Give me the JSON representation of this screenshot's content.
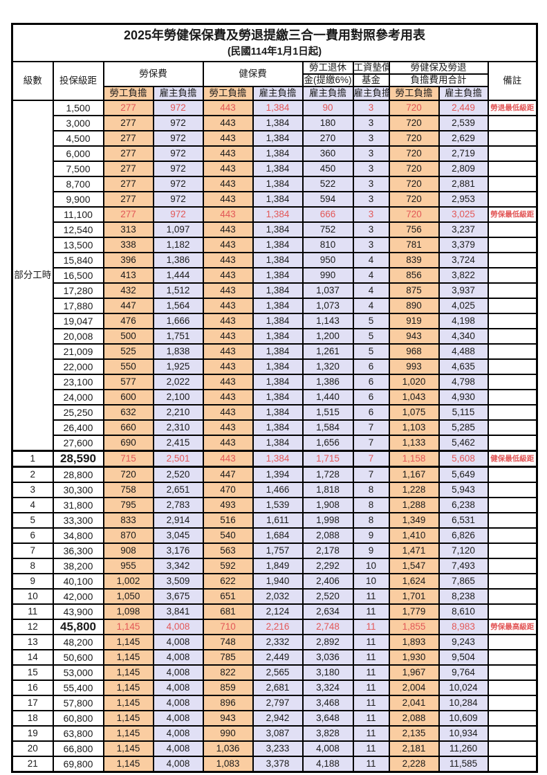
{
  "title": "2025年勞健保保費及勞退提繳三合一費用對照參考用表",
  "subtitle": "(民國114年1月1日起)",
  "colors": {
    "worker_bg": "#FACDA1",
    "employer_bg": "#E1E0F5",
    "highlight_text": "#E25757",
    "border": "#000000"
  },
  "header": {
    "level": "級數",
    "bracket": "投保級距",
    "labor_ins": "勞保費",
    "health_ins": "健保費",
    "pension_line1": "勞工退休",
    "pension_line2": "金(提繳6%)",
    "wage_fund_line1": "工資墊償",
    "wage_fund_line2": "基金",
    "total_line1": "勞健保及勞退",
    "total_line2": "負擔費用合計",
    "note": "備註",
    "worker": "勞工負擔",
    "employer": "雇主負擔"
  },
  "part_time_label": "部分工時",
  "part_time_row_count": 23,
  "rows": [
    {
      "level": "",
      "bracket": "1,500",
      "values": [
        "277",
        "972",
        "443",
        "1,384",
        "90",
        "3",
        "720",
        "2,449"
      ],
      "note": "勞退最低級距",
      "red": true,
      "big": false,
      "emph": false
    },
    {
      "level": "",
      "bracket": "3,000",
      "values": [
        "277",
        "972",
        "443",
        "1,384",
        "180",
        "3",
        "720",
        "2,539"
      ],
      "note": "",
      "red": false,
      "big": false,
      "emph": false
    },
    {
      "level": "",
      "bracket": "4,500",
      "values": [
        "277",
        "972",
        "443",
        "1,384",
        "270",
        "3",
        "720",
        "2,629"
      ],
      "note": "",
      "red": false,
      "big": false,
      "emph": false
    },
    {
      "level": "",
      "bracket": "6,000",
      "values": [
        "277",
        "972",
        "443",
        "1,384",
        "360",
        "3",
        "720",
        "2,719"
      ],
      "note": "",
      "red": false,
      "big": false,
      "emph": false
    },
    {
      "level": "",
      "bracket": "7,500",
      "values": [
        "277",
        "972",
        "443",
        "1,384",
        "450",
        "3",
        "720",
        "2,809"
      ],
      "note": "",
      "red": false,
      "big": false,
      "emph": false
    },
    {
      "level": "",
      "bracket": "8,700",
      "values": [
        "277",
        "972",
        "443",
        "1,384",
        "522",
        "3",
        "720",
        "2,881"
      ],
      "note": "",
      "red": false,
      "big": false,
      "emph": false
    },
    {
      "level": "",
      "bracket": "9,900",
      "values": [
        "277",
        "972",
        "443",
        "1,384",
        "594",
        "3",
        "720",
        "2,953"
      ],
      "note": "",
      "red": false,
      "big": false,
      "emph": false
    },
    {
      "level": "",
      "bracket": "11,100",
      "values": [
        "277",
        "972",
        "443",
        "1,384",
        "666",
        "3",
        "720",
        "3,025"
      ],
      "note": "勞保最低級距",
      "red": true,
      "big": false,
      "emph": false
    },
    {
      "level": "",
      "bracket": "12,540",
      "values": [
        "313",
        "1,097",
        "443",
        "1,384",
        "752",
        "3",
        "756",
        "3,237"
      ],
      "note": "",
      "red": false,
      "big": false,
      "emph": false
    },
    {
      "level": "",
      "bracket": "13,500",
      "values": [
        "338",
        "1,182",
        "443",
        "1,384",
        "810",
        "3",
        "781",
        "3,379"
      ],
      "note": "",
      "red": false,
      "big": false,
      "emph": false
    },
    {
      "level": "",
      "bracket": "15,840",
      "values": [
        "396",
        "1,386",
        "443",
        "1,384",
        "950",
        "4",
        "839",
        "3,724"
      ],
      "note": "",
      "red": false,
      "big": false,
      "emph": false
    },
    {
      "level": "",
      "bracket": "16,500",
      "values": [
        "413",
        "1,444",
        "443",
        "1,384",
        "990",
        "4",
        "856",
        "3,822"
      ],
      "note": "",
      "red": false,
      "big": false,
      "emph": false
    },
    {
      "level": "",
      "bracket": "17,280",
      "values": [
        "432",
        "1,512",
        "443",
        "1,384",
        "1,037",
        "4",
        "875",
        "3,937"
      ],
      "note": "",
      "red": false,
      "big": false,
      "emph": false
    },
    {
      "level": "",
      "bracket": "17,880",
      "values": [
        "447",
        "1,564",
        "443",
        "1,384",
        "1,073",
        "4",
        "890",
        "4,025"
      ],
      "note": "",
      "red": false,
      "big": false,
      "emph": false
    },
    {
      "level": "",
      "bracket": "19,047",
      "values": [
        "476",
        "1,666",
        "443",
        "1,384",
        "1,143",
        "5",
        "919",
        "4,198"
      ],
      "note": "",
      "red": false,
      "big": false,
      "emph": false
    },
    {
      "level": "",
      "bracket": "20,008",
      "values": [
        "500",
        "1,751",
        "443",
        "1,384",
        "1,200",
        "5",
        "943",
        "4,340"
      ],
      "note": "",
      "red": false,
      "big": false,
      "emph": false
    },
    {
      "level": "",
      "bracket": "21,009",
      "values": [
        "525",
        "1,838",
        "443",
        "1,384",
        "1,261",
        "5",
        "968",
        "4,488"
      ],
      "note": "",
      "red": false,
      "big": false,
      "emph": false
    },
    {
      "level": "",
      "bracket": "22,000",
      "values": [
        "550",
        "1,925",
        "443",
        "1,384",
        "1,320",
        "6",
        "993",
        "4,635"
      ],
      "note": "",
      "red": false,
      "big": false,
      "emph": false
    },
    {
      "level": "",
      "bracket": "23,100",
      "values": [
        "577",
        "2,022",
        "443",
        "1,384",
        "1,386",
        "6",
        "1,020",
        "4,798"
      ],
      "note": "",
      "red": false,
      "big": false,
      "emph": false
    },
    {
      "level": "",
      "bracket": "24,000",
      "values": [
        "600",
        "2,100",
        "443",
        "1,384",
        "1,440",
        "6",
        "1,043",
        "4,930"
      ],
      "note": "",
      "red": false,
      "big": false,
      "emph": false
    },
    {
      "level": "",
      "bracket": "25,250",
      "values": [
        "632",
        "2,210",
        "443",
        "1,384",
        "1,515",
        "6",
        "1,075",
        "5,115"
      ],
      "note": "",
      "red": false,
      "big": false,
      "emph": false
    },
    {
      "level": "",
      "bracket": "26,400",
      "values": [
        "660",
        "2,310",
        "443",
        "1,384",
        "1,584",
        "7",
        "1,103",
        "5,285"
      ],
      "note": "",
      "red": false,
      "big": false,
      "emph": false
    },
    {
      "level": "",
      "bracket": "27,600",
      "values": [
        "690",
        "2,415",
        "443",
        "1,384",
        "1,656",
        "7",
        "1,133",
        "5,462"
      ],
      "note": "",
      "red": false,
      "big": false,
      "emph": false
    },
    {
      "level": "1",
      "bracket": "28,590",
      "values": [
        "715",
        "2,501",
        "443",
        "1,384",
        "1,715",
        "7",
        "1,158",
        "5,608"
      ],
      "note": "健保最低級距",
      "red": true,
      "big": true,
      "emph": true
    },
    {
      "level": "2",
      "bracket": "28,800",
      "values": [
        "720",
        "2,520",
        "447",
        "1,394",
        "1,728",
        "7",
        "1,167",
        "5,649"
      ],
      "note": "",
      "red": false,
      "big": false,
      "emph": false
    },
    {
      "level": "3",
      "bracket": "30,300",
      "values": [
        "758",
        "2,651",
        "470",
        "1,466",
        "1,818",
        "8",
        "1,228",
        "5,943"
      ],
      "note": "",
      "red": false,
      "big": false,
      "emph": false
    },
    {
      "level": "4",
      "bracket": "31,800",
      "values": [
        "795",
        "2,783",
        "493",
        "1,539",
        "1,908",
        "8",
        "1,288",
        "6,238"
      ],
      "note": "",
      "red": false,
      "big": false,
      "emph": false
    },
    {
      "level": "5",
      "bracket": "33,300",
      "values": [
        "833",
        "2,914",
        "516",
        "1,611",
        "1,998",
        "8",
        "1,349",
        "6,531"
      ],
      "note": "",
      "red": false,
      "big": false,
      "emph": false
    },
    {
      "level": "6",
      "bracket": "34,800",
      "values": [
        "870",
        "3,045",
        "540",
        "1,684",
        "2,088",
        "9",
        "1,410",
        "6,826"
      ],
      "note": "",
      "red": false,
      "big": false,
      "emph": false
    },
    {
      "level": "7",
      "bracket": "36,300",
      "values": [
        "908",
        "3,176",
        "563",
        "1,757",
        "2,178",
        "9",
        "1,471",
        "7,120"
      ],
      "note": "",
      "red": false,
      "big": false,
      "emph": false
    },
    {
      "level": "8",
      "bracket": "38,200",
      "values": [
        "955",
        "3,342",
        "592",
        "1,849",
        "2,292",
        "10",
        "1,547",
        "7,493"
      ],
      "note": "",
      "red": false,
      "big": false,
      "emph": false
    },
    {
      "level": "9",
      "bracket": "40,100",
      "values": [
        "1,002",
        "3,509",
        "622",
        "1,940",
        "2,406",
        "10",
        "1,624",
        "7,865"
      ],
      "note": "",
      "red": false,
      "big": false,
      "emph": false
    },
    {
      "level": "10",
      "bracket": "42,000",
      "values": [
        "1,050",
        "3,675",
        "651",
        "2,032",
        "2,520",
        "11",
        "1,701",
        "8,238"
      ],
      "note": "",
      "red": false,
      "big": false,
      "emph": false
    },
    {
      "level": "11",
      "bracket": "43,900",
      "values": [
        "1,098",
        "3,841",
        "681",
        "2,124",
        "2,634",
        "11",
        "1,779",
        "8,610"
      ],
      "note": "",
      "red": false,
      "big": false,
      "emph": false
    },
    {
      "level": "12",
      "bracket": "45,800",
      "values": [
        "1,145",
        "4,008",
        "710",
        "2,216",
        "2,748",
        "11",
        "1,855",
        "8,983"
      ],
      "note": "勞保最高級距",
      "red": true,
      "big": true,
      "emph": false
    },
    {
      "level": "13",
      "bracket": "48,200",
      "values": [
        "1,145",
        "4,008",
        "748",
        "2,332",
        "2,892",
        "11",
        "1,893",
        "9,243"
      ],
      "note": "",
      "red": false,
      "big": false,
      "emph": false
    },
    {
      "level": "14",
      "bracket": "50,600",
      "values": [
        "1,145",
        "4,008",
        "785",
        "2,449",
        "3,036",
        "11",
        "1,930",
        "9,504"
      ],
      "note": "",
      "red": false,
      "big": false,
      "emph": false
    },
    {
      "level": "15",
      "bracket": "53,000",
      "values": [
        "1,145",
        "4,008",
        "822",
        "2,565",
        "3,180",
        "11",
        "1,967",
        "9,764"
      ],
      "note": "",
      "red": false,
      "big": false,
      "emph": false
    },
    {
      "level": "16",
      "bracket": "55,400",
      "values": [
        "1,145",
        "4,008",
        "859",
        "2,681",
        "3,324",
        "11",
        "2,004",
        "10,024"
      ],
      "note": "",
      "red": false,
      "big": false,
      "emph": false
    },
    {
      "level": "17",
      "bracket": "57,800",
      "values": [
        "1,145",
        "4,008",
        "896",
        "2,797",
        "3,468",
        "11",
        "2,041",
        "10,284"
      ],
      "note": "",
      "red": false,
      "big": false,
      "emph": false
    },
    {
      "level": "18",
      "bracket": "60,800",
      "values": [
        "1,145",
        "4,008",
        "943",
        "2,942",
        "3,648",
        "11",
        "2,088",
        "10,609"
      ],
      "note": "",
      "red": false,
      "big": false,
      "emph": false
    },
    {
      "level": "19",
      "bracket": "63,800",
      "values": [
        "1,145",
        "4,008",
        "990",
        "3,087",
        "3,828",
        "11",
        "2,135",
        "10,934"
      ],
      "note": "",
      "red": false,
      "big": false,
      "emph": false
    },
    {
      "level": "20",
      "bracket": "66,800",
      "values": [
        "1,145",
        "4,008",
        "1,036",
        "3,233",
        "4,008",
        "11",
        "2,181",
        "11,260"
      ],
      "note": "",
      "red": false,
      "big": false,
      "emph": false
    },
    {
      "level": "21",
      "bracket": "69,800",
      "values": [
        "1,145",
        "4,008",
        "1,083",
        "3,378",
        "4,188",
        "11",
        "2,228",
        "11,585"
      ],
      "note": "",
      "red": false,
      "big": false,
      "emph": false
    }
  ]
}
